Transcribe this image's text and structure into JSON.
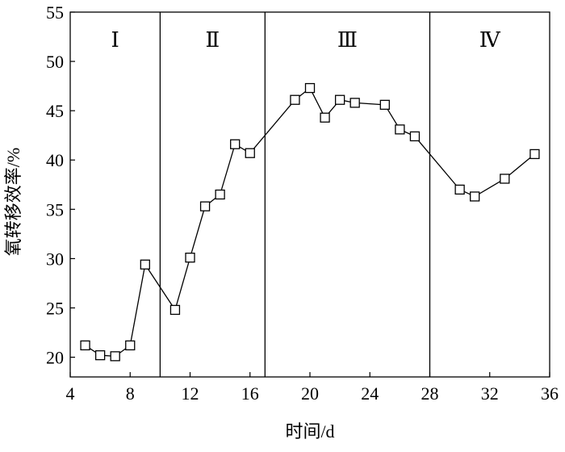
{
  "chart_data": {
    "type": "line",
    "xlabel": "时间/d",
    "ylabel": "氧转移效率/%",
    "x": [
      5,
      6,
      7,
      8,
      9,
      11,
      12,
      13,
      14,
      15,
      16,
      19,
      20,
      21,
      22,
      23,
      25,
      26,
      27,
      30,
      31,
      33,
      35
    ],
    "values": [
      21.2,
      20.2,
      20.1,
      21.2,
      29.4,
      24.8,
      30.1,
      35.3,
      36.5,
      41.6,
      40.7,
      46.1,
      47.3,
      44.3,
      46.1,
      45.8,
      45.6,
      43.1,
      42.4,
      37.0,
      36.3,
      38.1,
      40.6
    ],
    "color": "#000000",
    "xlim": [
      4,
      36
    ],
    "xticks": [
      4,
      8,
      12,
      16,
      20,
      24,
      28,
      32,
      36
    ],
    "ylim": [
      18,
      55
    ],
    "yticks": [
      20,
      25,
      30,
      35,
      40,
      45,
      50,
      55
    ],
    "dividers": [
      10,
      17,
      28
    ],
    "phase_labels": [
      "Ⅰ",
      "Ⅱ",
      "Ⅲ",
      "Ⅳ"
    ]
  }
}
